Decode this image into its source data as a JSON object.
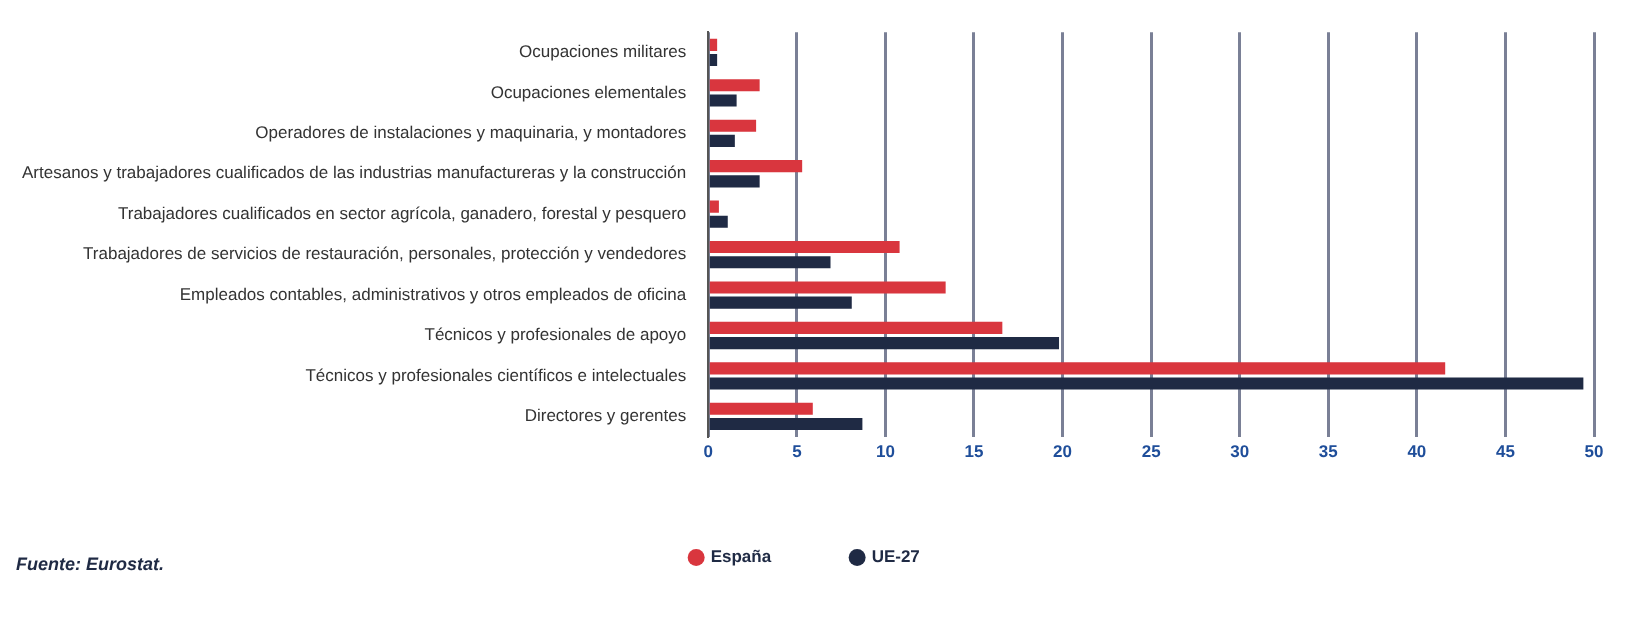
{
  "chart_data": {
    "type": "bar",
    "orientation": "horizontal",
    "categories": [
      "Ocupaciones militares",
      "Ocupaciones elementales",
      "Operadores de instalaciones y maquinaria, y montadores",
      "Artesanos y trabajadores cualificados de las industrias manufactureras y la construcción",
      "Trabajadores cualificados en sector agrícola, ganadero, forestal y pesquero",
      "Trabajadores de servicios de restauración, personales, protección y vendedores",
      "Empleados contables, administrativos y otros empleados de oficina",
      "Técnicos y profesionales de apoyo",
      "Técnicos y profesionales científicos e intelectuales",
      "Directores y gerentes"
    ],
    "series": [
      {
        "name": "España",
        "color": "#d9363e",
        "values": [
          0.5,
          2.9,
          2.7,
          5.3,
          0.6,
          10.8,
          13.4,
          16.6,
          41.6,
          5.9
        ]
      },
      {
        "name": "UE-27",
        "color": "#1f2a44",
        "values": [
          0.5,
          1.6,
          1.5,
          2.9,
          1.1,
          6.9,
          8.1,
          19.8,
          49.4,
          8.7
        ]
      }
    ],
    "xlim": [
      0,
      50
    ],
    "xticks": [
      0,
      5,
      10,
      15,
      20,
      25,
      30,
      35,
      40,
      45,
      50
    ],
    "grid": "x",
    "legend": "bottom",
    "annotations": [
      "Fuente: Eurostat."
    ]
  }
}
